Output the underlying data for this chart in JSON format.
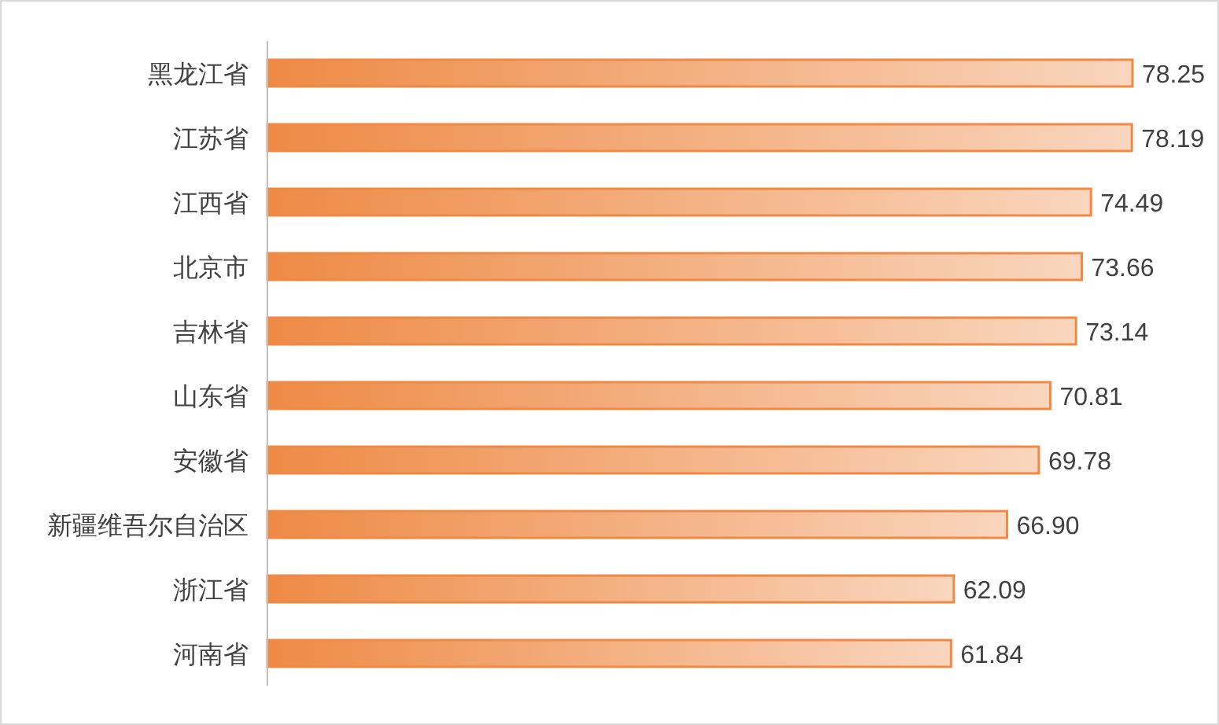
{
  "chart_data": {
    "type": "bar",
    "orientation": "horizontal",
    "data_labels": true,
    "categories": [
      "黑龙江省",
      "江苏省",
      "江西省",
      "北京市",
      "吉林省",
      "山东省",
      "安徽省",
      "新疆维吾尔自治区",
      "浙江省",
      "河南省"
    ],
    "values": [
      78.25,
      78.19,
      74.49,
      73.66,
      73.14,
      70.81,
      69.78,
      66.9,
      62.09,
      61.84
    ],
    "value_labels": [
      "78.25",
      "78.19",
      "74.49",
      "73.66",
      "73.14",
      "70.81",
      "69.78",
      "66.90",
      "62.09",
      "61.84"
    ],
    "color": "#ee8a45"
  }
}
